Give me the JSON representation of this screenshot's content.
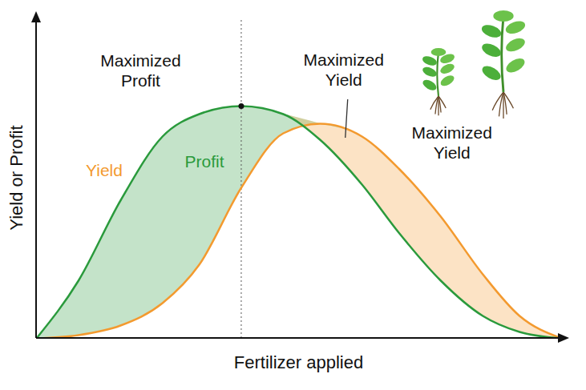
{
  "chart_data": {
    "type": "line",
    "x_label": "Fertilizer applied",
    "y_label": "Yield or Profit",
    "x": [
      0,
      8,
      16,
      24,
      31,
      39,
      47,
      54,
      62,
      69,
      77,
      85,
      92,
      100
    ],
    "series": [
      {
        "name": "Yield",
        "color": "#f39a2f",
        "values": [
          0,
          1,
          4,
          11,
          23,
          47,
          64,
          67,
          63,
          53,
          38,
          20,
          7,
          0
        ]
      },
      {
        "name": "Profit",
        "color": "#2a9a3c",
        "values": [
          0,
          18,
          43,
          63,
          70,
          72.5,
          70,
          62,
          48,
          33,
          18,
          7,
          2,
          0
        ]
      }
    ],
    "xlim": [
      0,
      100
    ],
    "ylim": [
      0,
      100
    ],
    "xticks": [],
    "yticks": [],
    "tick_labels": false,
    "grid": false,
    "annotations": [
      {
        "text": "Maximized Profit",
        "series": "Profit"
      },
      {
        "text": "Maximized Yield",
        "series": "Yield"
      },
      {
        "text": "Maximized Yield",
        "series": "Yield"
      }
    ]
  }
}
